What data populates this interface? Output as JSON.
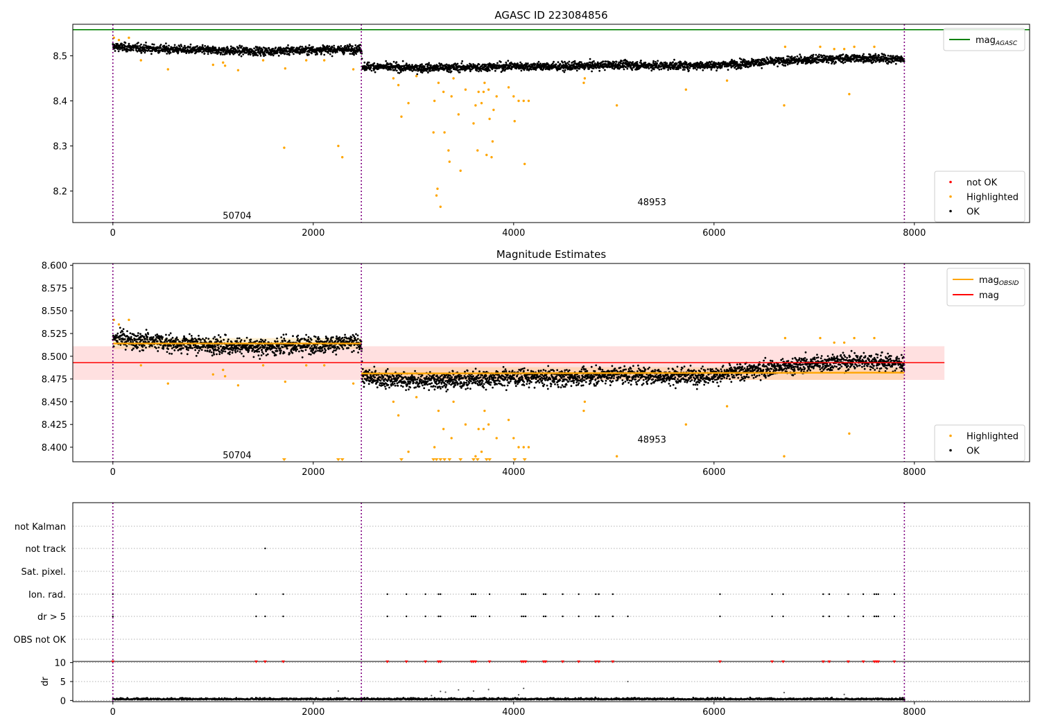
{
  "chart_data": [
    {
      "type": "scatter",
      "title": "AGASC ID 223084856",
      "xlim": [
        -400,
        9150
      ],
      "ylim": [
        8.13,
        8.57
      ],
      "xticks": [
        0,
        2000,
        4000,
        6000,
        8000
      ],
      "yticks": [
        8.2,
        8.3,
        8.4,
        8.5
      ],
      "obs_boundaries": [
        0,
        2480,
        7900
      ],
      "obs_labels": [
        {
          "text": "50704",
          "x": 1240,
          "y": 8.145
        },
        {
          "text": "48953",
          "x": 5380,
          "y": 8.175
        }
      ],
      "agasc_mag": 8.558,
      "legend_top": {
        "position": "top-right",
        "entries": [
          {
            "label": "mag",
            "sub": "AGASC",
            "color": "#008000",
            "kind": "line"
          }
        ]
      },
      "legend_bottom": {
        "position": "bottom-right",
        "entries": [
          {
            "label": "not OK",
            "color": "#ff0000",
            "kind": "dot"
          },
          {
            "label": "Highlighted",
            "color": "#ffa500",
            "kind": "dot"
          },
          {
            "label": "OK",
            "color": "#000000",
            "kind": "dot"
          }
        ]
      },
      "ok_trend": [
        {
          "x": 0,
          "y": 8.52
        },
        {
          "x": 500,
          "y": 8.515
        },
        {
          "x": 1000,
          "y": 8.512
        },
        {
          "x": 1500,
          "y": 8.51
        },
        {
          "x": 2000,
          "y": 8.513
        },
        {
          "x": 2480,
          "y": 8.515
        },
        {
          "x": 2490,
          "y": 8.477
        },
        {
          "x": 3000,
          "y": 8.473
        },
        {
          "x": 3500,
          "y": 8.474
        },
        {
          "x": 4000,
          "y": 8.477
        },
        {
          "x": 4500,
          "y": 8.476
        },
        {
          "x": 5000,
          "y": 8.48
        },
        {
          "x": 5500,
          "y": 8.478
        },
        {
          "x": 6000,
          "y": 8.479
        },
        {
          "x": 6500,
          "y": 8.486
        },
        {
          "x": 7000,
          "y": 8.492
        },
        {
          "x": 7500,
          "y": 8.495
        },
        {
          "x": 7900,
          "y": 8.492
        }
      ],
      "highlighted": [
        [
          10,
          8.54
        ],
        [
          60,
          8.535
        ],
        [
          160,
          8.54
        ],
        [
          280,
          8.49
        ],
        [
          550,
          8.47
        ],
        [
          1000,
          8.48
        ],
        [
          1100,
          8.485
        ],
        [
          1120,
          8.478
        ],
        [
          1250,
          8.468
        ],
        [
          1500,
          8.49
        ],
        [
          1710,
          8.296
        ],
        [
          1720,
          8.472
        ],
        [
          1930,
          8.49
        ],
        [
          2110,
          8.49
        ],
        [
          2250,
          8.3
        ],
        [
          2290,
          8.275
        ],
        [
          2400,
          8.47
        ],
        [
          2800,
          8.45
        ],
        [
          2850,
          8.435
        ],
        [
          2880,
          8.365
        ],
        [
          2950,
          8.395
        ],
        [
          3030,
          8.455
        ],
        [
          3200,
          8.33
        ],
        [
          3210,
          8.4
        ],
        [
          3230,
          8.19
        ],
        [
          3240,
          8.205
        ],
        [
          3250,
          8.44
        ],
        [
          3270,
          8.165
        ],
        [
          3300,
          8.42
        ],
        [
          3310,
          8.33
        ],
        [
          3350,
          8.29
        ],
        [
          3360,
          8.265
        ],
        [
          3380,
          8.41
        ],
        [
          3400,
          8.45
        ],
        [
          3450,
          8.37
        ],
        [
          3470,
          8.245
        ],
        [
          3520,
          8.425
        ],
        [
          3600,
          8.35
        ],
        [
          3620,
          8.39
        ],
        [
          3640,
          8.29
        ],
        [
          3650,
          8.42
        ],
        [
          3680,
          8.395
        ],
        [
          3700,
          8.42
        ],
        [
          3710,
          8.44
        ],
        [
          3730,
          8.28
        ],
        [
          3750,
          8.425
        ],
        [
          3760,
          8.36
        ],
        [
          3780,
          8.275
        ],
        [
          3790,
          8.31
        ],
        [
          3800,
          8.38
        ],
        [
          3830,
          8.41
        ],
        [
          3950,
          8.43
        ],
        [
          4000,
          8.41
        ],
        [
          4010,
          8.355
        ],
        [
          4050,
          8.4
        ],
        [
          4100,
          8.4
        ],
        [
          4110,
          8.26
        ],
        [
          4150,
          8.4
        ],
        [
          4700,
          8.44
        ],
        [
          4710,
          8.45
        ],
        [
          5030,
          8.39
        ],
        [
          5720,
          8.425
        ],
        [
          6130,
          8.445
        ],
        [
          6700,
          8.39
        ],
        [
          6710,
          8.52
        ],
        [
          7060,
          8.52
        ],
        [
          7200,
          8.515
        ],
        [
          7300,
          8.515
        ],
        [
          7350,
          8.415
        ],
        [
          7400,
          8.52
        ],
        [
          7600,
          8.52
        ]
      ],
      "not_ok": []
    },
    {
      "type": "scatter",
      "title": "Magnitude Estimates",
      "xlim": [
        -400,
        9150
      ],
      "ylim": [
        8.384,
        8.602
      ],
      "xticks": [
        0,
        2000,
        4000,
        6000,
        8000
      ],
      "yticks": [
        8.4,
        8.425,
        8.45,
        8.475,
        8.5,
        8.525,
        8.55,
        8.575,
        8.6
      ],
      "ytick_labels": [
        "8.400",
        "8.425",
        "8.450",
        "8.475",
        "8.500",
        "8.525",
        "8.550",
        "8.575",
        "8.600"
      ],
      "obs_boundaries": [
        0,
        2480,
        7900
      ],
      "obs_labels": [
        {
          "text": "50704",
          "x": 1240,
          "y": 8.391
        },
        {
          "text": "48953",
          "x": 5380,
          "y": 8.408
        }
      ],
      "mag": 8.493,
      "mag_band": [
        8.474,
        8.511
      ],
      "mag_band_xrange": [
        -400,
        8300
      ],
      "mag_obsid": [
        {
          "x0": 0,
          "x1": 2480,
          "y": 8.514,
          "band": [
            8.508,
            8.52
          ]
        },
        {
          "x0": 2480,
          "x1": 7900,
          "y": 8.481,
          "y_end": 8.482,
          "band": [
            8.474,
            8.488
          ]
        }
      ],
      "legend_top": {
        "position": "top-right",
        "entries": [
          {
            "label": "mag",
            "sub": "OBSID",
            "color": "#ffa500",
            "kind": "line"
          },
          {
            "label": "mag",
            "color": "#ff0000",
            "kind": "line"
          }
        ]
      },
      "legend_bottom": {
        "position": "bottom-right",
        "entries": [
          {
            "label": "Highlighted",
            "color": "#ffa500",
            "kind": "dot"
          },
          {
            "label": "OK",
            "color": "#000000",
            "kind": "dot"
          }
        ]
      },
      "clipped_markers_x": [
        1710,
        2250,
        2290,
        2880,
        3200,
        3230,
        3270,
        3310,
        3360,
        3470,
        3600,
        3640,
        3730,
        3760,
        4010,
        4110
      ]
    },
    {
      "type": "scatter",
      "title": "",
      "xlim": [
        -400,
        9150
      ],
      "xticks": [
        0,
        2000,
        4000,
        6000,
        8000
      ],
      "categories": [
        "not Kalman",
        "not track",
        "Sat. pixel.",
        "Ion. rad.",
        "dr > 5",
        "OBS not OK"
      ],
      "flag_times": {
        "not Kalman": [],
        "not track": [
          1520
        ],
        "Sat. pixel.": [],
        "Ion. rad.": [
          0,
          1430,
          1700,
          2740,
          2930,
          3120,
          3250,
          3270,
          3580,
          3600,
          3620,
          3760,
          4080,
          4100,
          4120,
          4300,
          4320,
          4490,
          4650,
          4820,
          4850,
          4990,
          6060,
          6580,
          6690,
          7090,
          7150,
          7340,
          7490,
          7600,
          7620,
          7640,
          7800
        ],
        "dr > 5": [
          0,
          1430,
          1520,
          1700,
          2740,
          2930,
          3120,
          3250,
          3270,
          3580,
          3600,
          3620,
          3760,
          4080,
          4100,
          4120,
          4300,
          4320,
          4490,
          4650,
          4820,
          4850,
          4990,
          5140,
          6060,
          6580,
          6690,
          7090,
          7150,
          7340,
          7490,
          7600,
          7620,
          7640,
          7800
        ],
        "OBS not OK": []
      },
      "dr_axis": {
        "label": "dr",
        "ylim": [
          -0.3,
          10.3
        ],
        "yticks": [
          0,
          5,
          10
        ],
        "clipped_red_x": [
          0,
          1430,
          1520,
          1700,
          2740,
          2930,
          3120,
          3250,
          3270,
          3580,
          3600,
          3620,
          3760,
          4080,
          4100,
          4120,
          4300,
          4320,
          4490,
          4650,
          4820,
          4850,
          4990,
          6060,
          6580,
          6690,
          7090,
          7150,
          7340,
          7490,
          7600,
          7620,
          7640,
          7800
        ],
        "scattered_points": [
          [
            2250,
            2.5
          ],
          [
            3270,
            2.4
          ],
          [
            3320,
            2.2
          ],
          [
            3450,
            2.8
          ],
          [
            3600,
            2.5
          ],
          [
            3750,
            2.9
          ],
          [
            4100,
            3.2
          ],
          [
            5140,
            5.0
          ],
          [
            4050,
            1.5
          ],
          [
            3180,
            1.3
          ],
          [
            6700,
            2.1
          ],
          [
            7300,
            1.6
          ]
        ]
      }
    }
  ]
}
